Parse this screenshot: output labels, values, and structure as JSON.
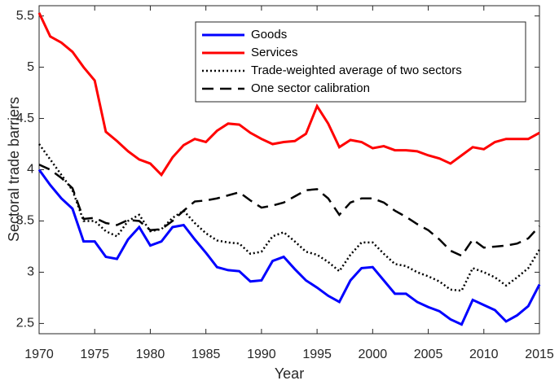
{
  "chart_data": {
    "type": "line",
    "x_label": "Year",
    "y_label": "Sectoral trade barriers",
    "x": [
      1970,
      1971,
      1972,
      1973,
      1974,
      1975,
      1976,
      1977,
      1978,
      1979,
      1980,
      1981,
      1982,
      1983,
      1984,
      1985,
      1986,
      1987,
      1988,
      1989,
      1990,
      1991,
      1992,
      1993,
      1994,
      1995,
      1996,
      1997,
      1998,
      1999,
      2000,
      2001,
      2002,
      2003,
      2004,
      2005,
      2006,
      2007,
      2008,
      2009,
      2010,
      2011,
      2012,
      2013,
      2014,
      2015
    ],
    "series": [
      {
        "name": "Goods",
        "color": "#0000ff",
        "style": "solid",
        "values": [
          4.0,
          3.85,
          3.72,
          3.62,
          3.3,
          3.3,
          3.15,
          3.13,
          3.32,
          3.44,
          3.26,
          3.3,
          3.44,
          3.46,
          3.32,
          3.19,
          3.05,
          3.02,
          3.01,
          2.91,
          2.92,
          3.11,
          3.15,
          3.03,
          2.92,
          2.85,
          2.77,
          2.71,
          2.92,
          3.04,
          3.05,
          2.92,
          2.79,
          2.79,
          2.71,
          2.66,
          2.62,
          2.54,
          2.49,
          2.73,
          2.68,
          2.63,
          2.52,
          2.58,
          2.67,
          2.88
        ]
      },
      {
        "name": "Services",
        "color": "#ff0000",
        "style": "solid",
        "values": [
          5.53,
          5.3,
          5.24,
          5.15,
          5.0,
          4.87,
          4.37,
          4.28,
          4.18,
          4.1,
          4.06,
          3.95,
          4.12,
          4.24,
          4.3,
          4.27,
          4.38,
          4.45,
          4.44,
          4.36,
          4.3,
          4.25,
          4.27,
          4.28,
          4.35,
          4.62,
          4.45,
          4.22,
          4.29,
          4.27,
          4.21,
          4.23,
          4.19,
          4.19,
          4.18,
          4.14,
          4.11,
          4.06,
          4.14,
          4.22,
          4.2,
          4.27,
          4.3,
          4.3,
          4.3,
          4.36
        ]
      },
      {
        "name": "Trade-weighted average of two sectors",
        "color": "#000000",
        "style": "dotted",
        "values": [
          4.25,
          4.1,
          3.95,
          3.8,
          3.5,
          3.5,
          3.4,
          3.35,
          3.5,
          3.56,
          3.4,
          3.42,
          3.53,
          3.6,
          3.48,
          3.38,
          3.31,
          3.29,
          3.28,
          3.18,
          3.2,
          3.35,
          3.39,
          3.3,
          3.2,
          3.17,
          3.1,
          3.01,
          3.17,
          3.29,
          3.29,
          3.18,
          3.08,
          3.06,
          3.0,
          2.96,
          2.91,
          2.83,
          2.82,
          3.04,
          3.0,
          2.95,
          2.87,
          2.95,
          3.04,
          3.22
        ]
      },
      {
        "name": "One sector calibration",
        "color": "#000000",
        "style": "dashed",
        "values": [
          4.05,
          4.0,
          3.92,
          3.82,
          3.52,
          3.53,
          3.48,
          3.46,
          3.51,
          3.5,
          3.41,
          3.42,
          3.5,
          3.6,
          3.69,
          3.7,
          3.72,
          3.75,
          3.78,
          3.7,
          3.63,
          3.65,
          3.68,
          3.74,
          3.8,
          3.81,
          3.72,
          3.56,
          3.68,
          3.72,
          3.72,
          3.68,
          3.6,
          3.54,
          3.47,
          3.41,
          3.32,
          3.21,
          3.16,
          3.32,
          3.24,
          3.25,
          3.26,
          3.28,
          3.33,
          3.45
        ]
      }
    ],
    "xlim": [
      1970,
      2015
    ],
    "xticks": [
      1970,
      1975,
      1980,
      1985,
      1990,
      1995,
      2000,
      2005,
      2010,
      2015
    ],
    "ylim": [
      2.4,
      5.6
    ],
    "yticks": [
      2.5,
      3,
      3.5,
      4,
      4.5,
      5,
      5.5
    ],
    "grid": false,
    "legend": "upper right"
  }
}
